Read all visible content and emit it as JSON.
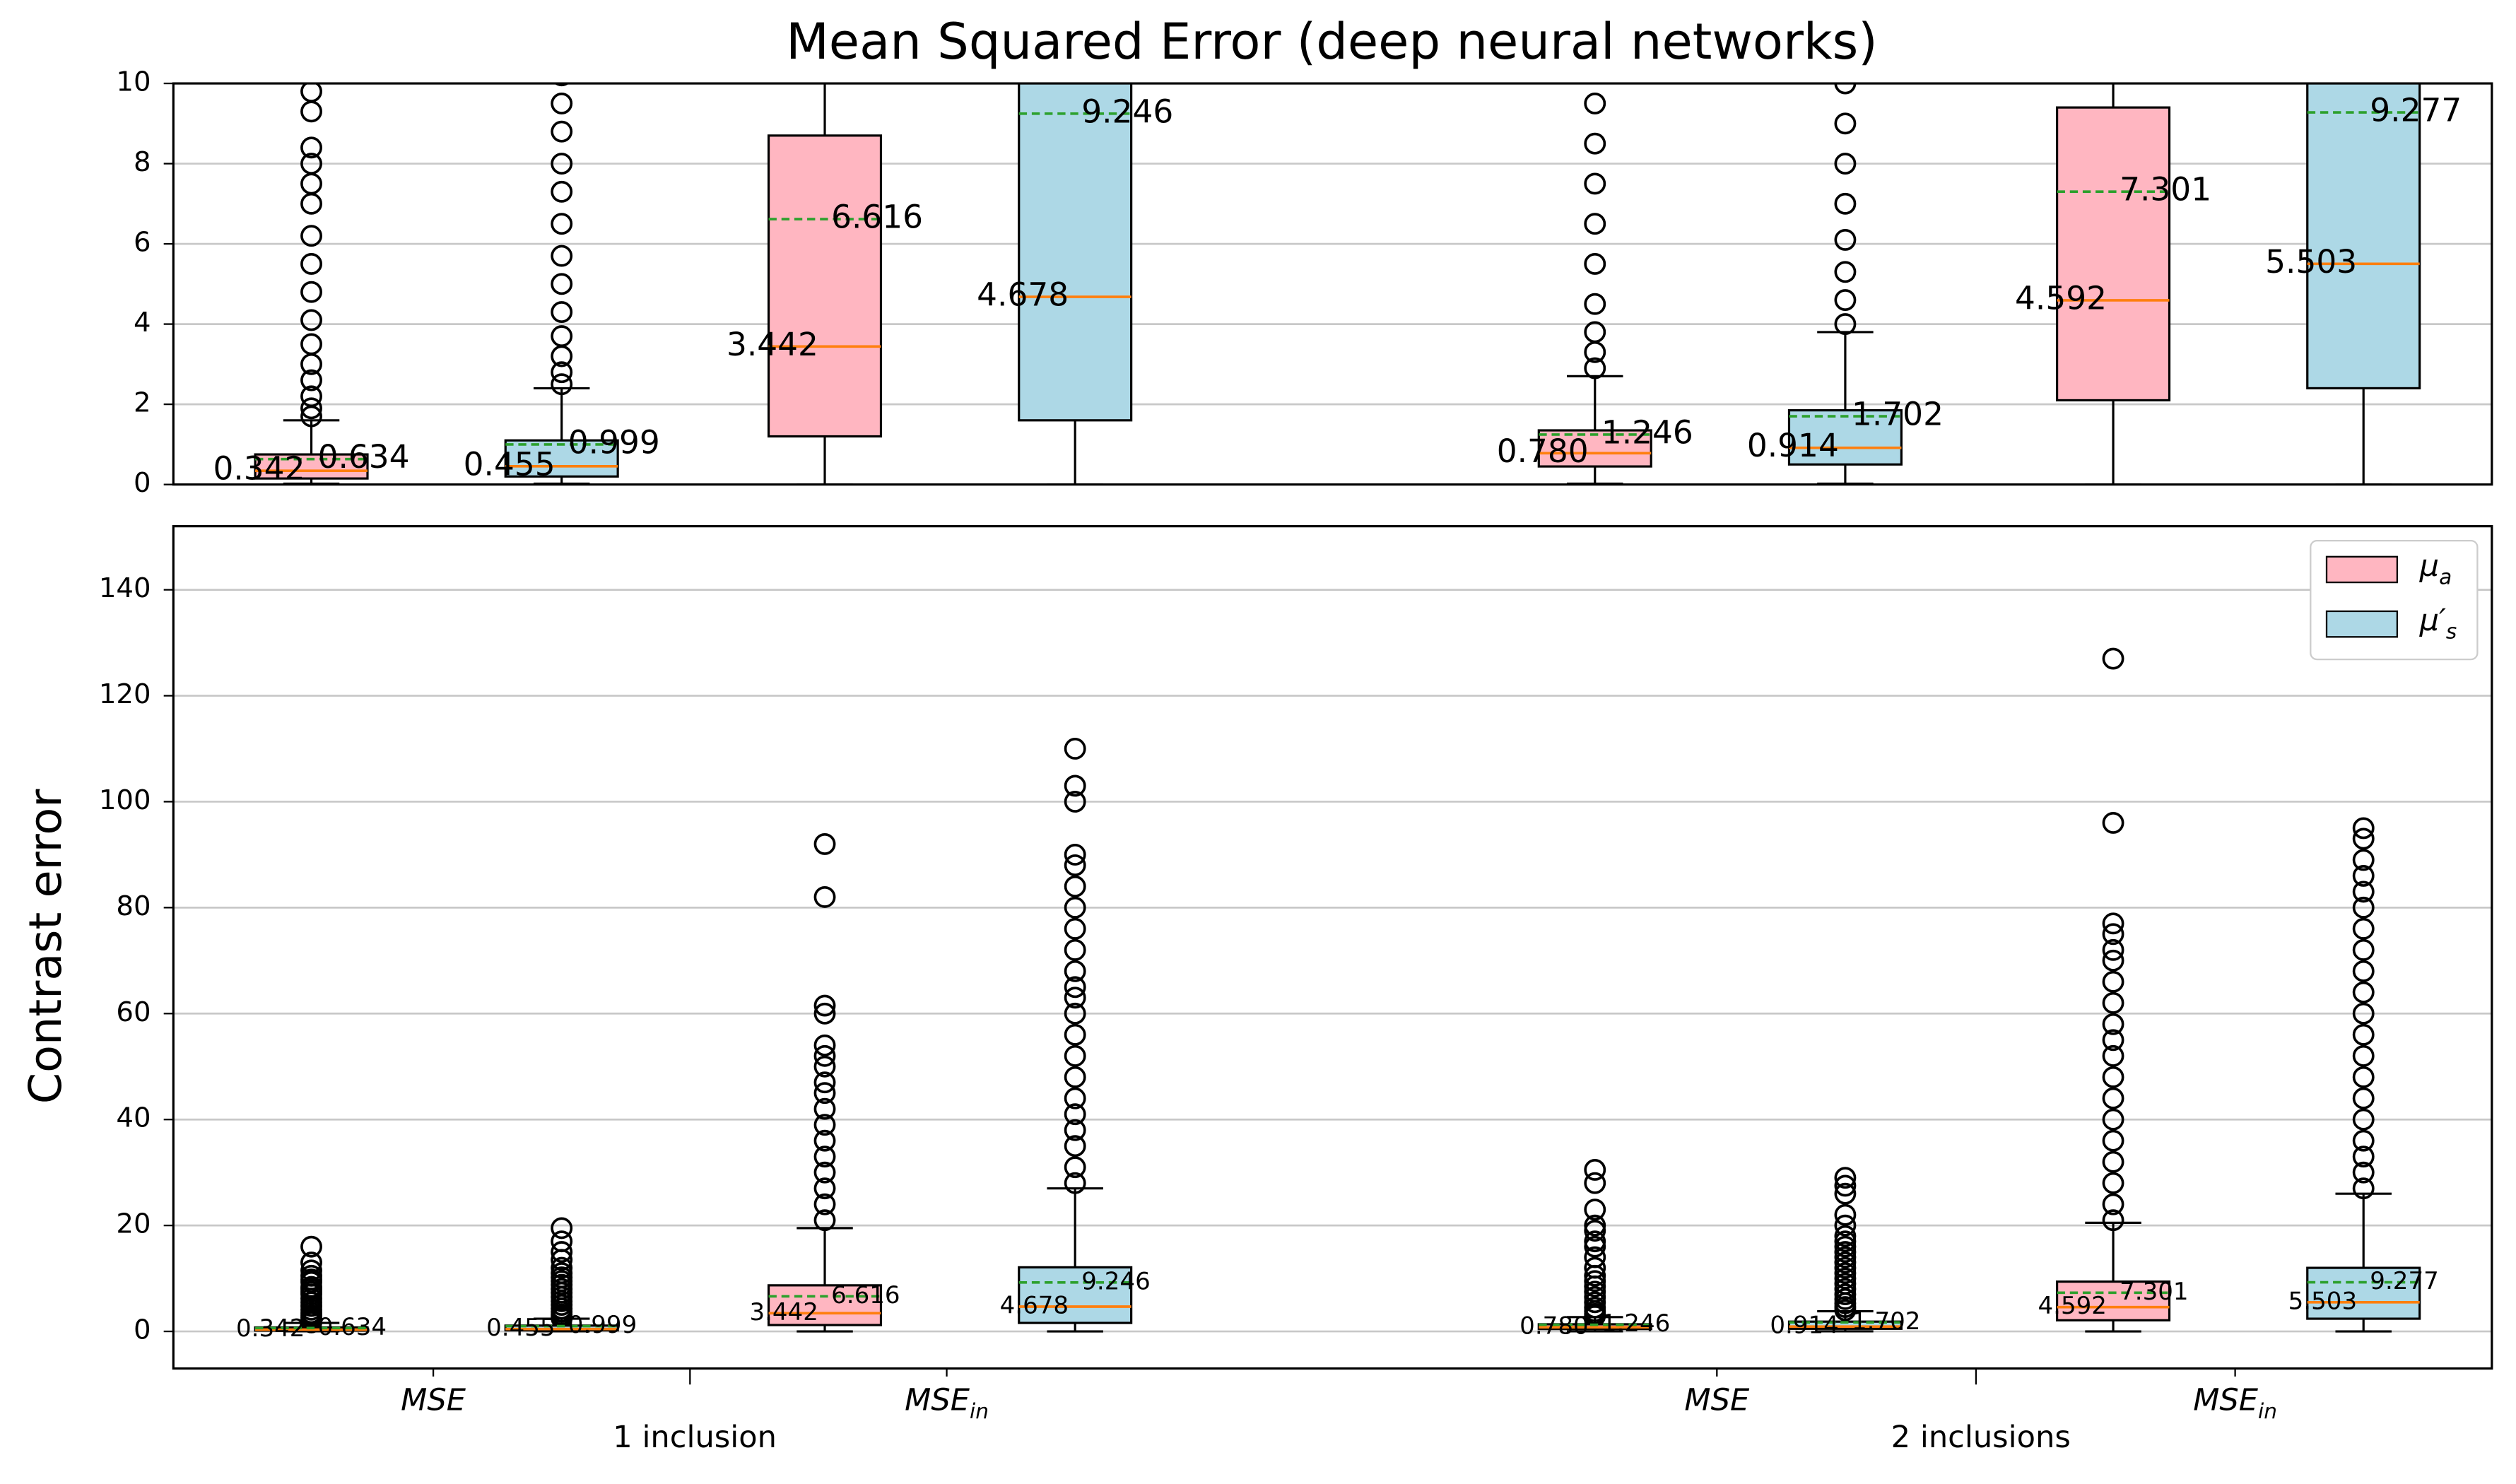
{
  "chart_data": {
    "type": "box",
    "title": "Mean Squared Error (deep neural networks)",
    "ylabel": "Contrast error",
    "categories": [
      "MSE",
      {
        "text": "MSE",
        "sub": "in"
      },
      "MSE",
      {
        "text": "MSE",
        "sub": "in"
      }
    ],
    "groups": [
      "1 inclusion",
      "2 inclusions"
    ],
    "panels": [
      {
        "ylim": [
          0,
          10
        ],
        "yticks": [
          0,
          2,
          4,
          6,
          8,
          10
        ],
        "grid": true
      },
      {
        "ylim": [
          -7,
          152
        ],
        "yticks": [
          0,
          20,
          40,
          60,
          80,
          100,
          120,
          140
        ],
        "grid": true
      }
    ],
    "legend": "upper right",
    "median_color": "#ff7f0e",
    "mean_color": "#2ca02c",
    "series": [
      {
        "name": {
          "text": "μ",
          "sub": "a"
        },
        "color": "#ffb6c1",
        "boxes": [
          {
            "low": 0.02,
            "q1": 0.15,
            "median": 0.342,
            "q3": 0.75,
            "high": 1.6,
            "mean": 0.634,
            "median_label": "0.342",
            "mean_label": "0.634",
            "outliers": [
              1.7,
              1.9,
              2.2,
              2.6,
              3.0,
              3.5,
              4.1,
              4.8,
              5.5,
              6.2,
              7.0,
              7.5,
              8.0,
              8.4,
              9.3,
              9.8,
              10.5,
              11.5,
              13,
              16
            ]
          },
          {
            "low": 0,
            "q1": 1.2,
            "median": 3.442,
            "q3": 8.7,
            "high": 19.5,
            "mean": 6.616,
            "median_label": "3.442",
            "mean_label": "6.616",
            "outliers": [
              21,
              24,
              27,
              30,
              33,
              36,
              39,
              42,
              45,
              47,
              50,
              52,
              54,
              60,
              61.5,
              82,
              92
            ]
          },
          {
            "low": 0.02,
            "q1": 0.45,
            "median": 0.78,
            "q3": 1.35,
            "high": 2.7,
            "mean": 1.246,
            "median_label": "0.780",
            "mean_label": "1.246",
            "outliers": [
              2.9,
              3.3,
              3.8,
              4.5,
              5.5,
              6.5,
              7.5,
              8.5,
              9.5,
              10.5,
              12,
              14,
              16,
              17,
              19,
              20,
              23,
              28,
              30.5
            ]
          },
          {
            "low": 0,
            "q1": 2.1,
            "median": 4.592,
            "q3": 9.4,
            "high": 20.5,
            "mean": 7.301,
            "median_label": "4.592",
            "mean_label": "7.301",
            "outliers": [
              21,
              24,
              28,
              32,
              36,
              40,
              44,
              48,
              52,
              55,
              58,
              62,
              66,
              70,
              72,
              75,
              77,
              96,
              127
            ]
          }
        ]
      },
      {
        "name": {
          "text": "μ′",
          "sub": "s"
        },
        "color": "#add8e6",
        "boxes": [
          {
            "low": 0.02,
            "q1": 0.2,
            "median": 0.455,
            "q3": 1.1,
            "high": 2.4,
            "mean": 0.999,
            "median_label": "0.455",
            "mean_label": "0.999",
            "outliers": [
              2.5,
              2.8,
              3.2,
              3.7,
              4.3,
              5.0,
              5.7,
              6.5,
              7.3,
              8.0,
              8.8,
              9.5,
              10.2,
              11,
              12,
              13.5,
              15,
              17,
              19.5
            ]
          },
          {
            "low": 0,
            "q1": 1.6,
            "median": 4.678,
            "q3": 12.1,
            "high": 27,
            "mean": 9.246,
            "median_label": "4.678",
            "mean_label": "9.246",
            "outliers": [
              28,
              31,
              35,
              38,
              41,
              44,
              48,
              52,
              56,
              60,
              63,
              65,
              68,
              72,
              76,
              80,
              84,
              88,
              90,
              100,
              103,
              110
            ]
          },
          {
            "low": 0.02,
            "q1": 0.5,
            "median": 0.914,
            "q3": 1.85,
            "high": 3.8,
            "mean": 1.702,
            "median_label": "0.914",
            "mean_label": "1.702",
            "outliers": [
              4.0,
              4.6,
              5.3,
              6.1,
              7,
              8,
              9,
              10,
              11,
              12,
              13,
              14,
              15,
              16,
              17,
              18,
              20,
              22,
              26,
              27.5,
              29
            ]
          },
          {
            "low": 0,
            "q1": 2.4,
            "median": 5.503,
            "q3": 12,
            "high": 26,
            "mean": 9.277,
            "median_label": "5.503",
            "mean_label": "9.277",
            "outliers": [
              27,
              30,
              33,
              36,
              40,
              44,
              48,
              52,
              56,
              60,
              64,
              68,
              72,
              76,
              80,
              83,
              86,
              89,
              93,
              95
            ]
          }
        ]
      }
    ]
  }
}
